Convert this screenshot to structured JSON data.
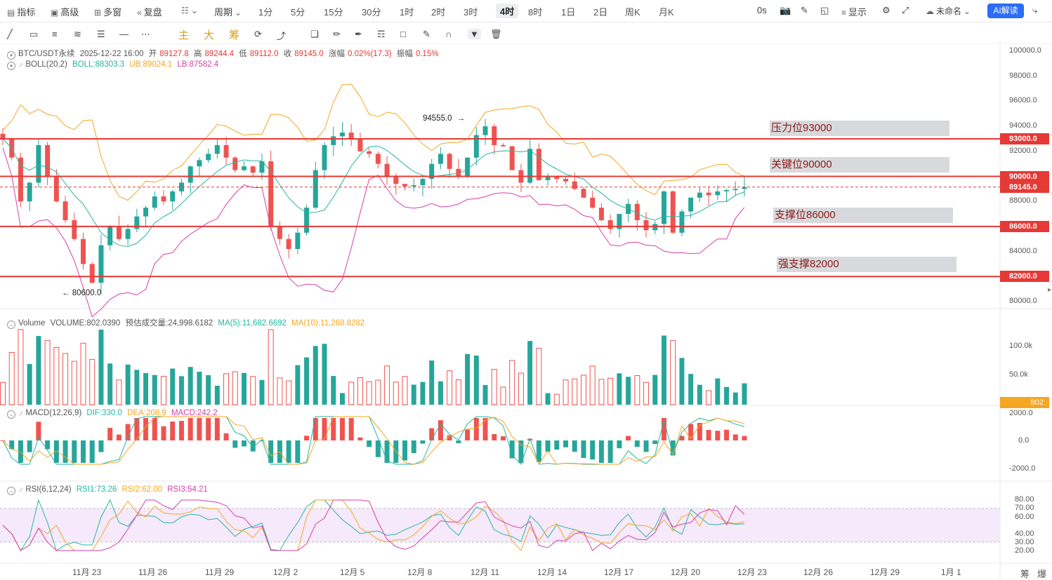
{
  "topbar": {
    "indicators_label": "指标",
    "advanced_label": "高级",
    "multiwindow_label": "多窗",
    "replay_label": "复盘",
    "period_label": "周期",
    "periods": [
      "1分",
      "5分",
      "15分",
      "30分",
      "1时",
      "2时",
      "3时",
      "4时",
      "8时",
      "1日",
      "2日",
      "周K",
      "月K"
    ],
    "active_period": "4时",
    "countdown": "0s",
    "display_label": "显示",
    "layout_name": "未命名",
    "ai_button": "AI解读"
  },
  "drawing_toolbar": {
    "main_label": "主",
    "big_label": "大",
    "chip_label": "筹"
  },
  "ohlc_legend": {
    "symbol": "BTC/USDT永续",
    "datetime": "2025-12-22 16:00",
    "open_label": "开",
    "open": "89127.8",
    "high_label": "高",
    "high": "89244.4",
    "low_label": "低",
    "low": "89112.0",
    "close_label": "收",
    "close": "89145.0",
    "change_label": "涨幅",
    "change": "0.02%(17.3)",
    "amplitude_label": "振幅",
    "amplitude": "0.15%"
  },
  "boll_legend": {
    "name": "BOLL(20,2)",
    "boll": "BOLL:88303.3",
    "ub": "UB:89024.1",
    "lb": "LB:87582.4"
  },
  "annotations": {
    "high_marker": "94555.0",
    "low_marker": "80600.0",
    "zones": [
      {
        "label": "压力位93000",
        "price": 93000
      },
      {
        "label": "关键位90000",
        "price": 90000
      },
      {
        "label": "支撑位86000",
        "price": 86000
      },
      {
        "label": "强支撑82000",
        "price": 82000
      }
    ]
  },
  "price_axis": {
    "ticks": [
      "100000.0",
      "98000.0",
      "96000.0",
      "94000.0",
      "92000.0",
      "88000.0",
      "84000.0",
      "80000.0"
    ],
    "ticks_values": [
      100000,
      98000,
      96000,
      94000,
      92000,
      88000,
      84000,
      80000
    ],
    "labels": [
      {
        "text": "93000.0",
        "value": 93000,
        "color": "#e53935"
      },
      {
        "text": "90000.0",
        "value": 90000,
        "color": "#e53935"
      },
      {
        "text": "89145.0",
        "value": 89145,
        "color": "#e53935"
      },
      {
        "text": "86000.0",
        "value": 86000,
        "color": "#e53935"
      },
      {
        "text": "82000.0",
        "value": 82000,
        "color": "#e53935"
      }
    ]
  },
  "volume_legend": {
    "name": "Volume",
    "volume": "VOLUME:802.0390",
    "estimated": "预估成交量:24,998.6182",
    "ma5": "MA(5):11,682.6692",
    "ma10": "MA(10):11,268.8282"
  },
  "volume_axis": {
    "ticks": [
      "100.0k",
      "50.0k"
    ],
    "current": "802"
  },
  "macd_legend": {
    "name": "MACD(12,26,9)",
    "dif": "DIF:330.0",
    "dea": "DEA:208.9",
    "macd": "MACD:242.2"
  },
  "macd_axis": {
    "ticks": [
      "2000.0",
      "0.0",
      "-2000.0"
    ]
  },
  "rsi_legend": {
    "name": "RSI(6,12,24)",
    "rsi1": "RSI1:73.26",
    "rsi2": "RSI2:62.00",
    "rsi3": "RSI3:54.21"
  },
  "rsi_axis": {
    "ticks": [
      "80.00",
      "70.00",
      "60.00",
      "40.00",
      "30.00",
      "20.00"
    ]
  },
  "time_axis": [
    "11月 23",
    "11月 26",
    "11月 29",
    "12月 2",
    "12月 5",
    "12月 8",
    "12月 11",
    "12月 14",
    "12月 17",
    "12月 20",
    "12月 23",
    "12月 26",
    "12月 29",
    "1月 1"
  ],
  "footer_icons": [
    "筹",
    "爆"
  ],
  "colors": {
    "up": "#26a69a",
    "down": "#ef5350",
    "boll_mid": "#26b5a0",
    "boll_ub": "#f5a623",
    "boll_lb": "#d63fa8",
    "level_line": "#e53935",
    "accent": "#2d6cf5"
  },
  "chart_data": {
    "type": "candlestick",
    "interval": "4h",
    "y_range": [
      79500,
      100500
    ],
    "close_series_approx": [
      93000,
      91500,
      88000,
      89500,
      92500,
      90000,
      88000,
      86500,
      85000,
      83000,
      81500,
      84500,
      86000,
      85000,
      85800,
      86800,
      87500,
      88400,
      88000,
      88800,
      89500,
      90800,
      91300,
      91800,
      92500,
      91500,
      90500,
      90800,
      90300,
      91200,
      86000,
      85000,
      84200,
      85500,
      87500,
      90500,
      92500,
      93200,
      93500,
      93000,
      92000,
      91800,
      91000,
      90000,
      89400,
      89200,
      89300,
      89800,
      91000,
      91800,
      90600,
      90000,
      91500,
      93300,
      94000,
      92500,
      92400,
      90500,
      89500,
      92200,
      89700,
      90000,
      89800,
      89600,
      89000,
      88300,
      87500,
      86500,
      85800,
      87000,
      87800,
      86500,
      85700,
      86200,
      88800,
      85500,
      87200,
      88300,
      88700,
      88500,
      88800,
      88900,
      89000,
      89145
    ]
  }
}
